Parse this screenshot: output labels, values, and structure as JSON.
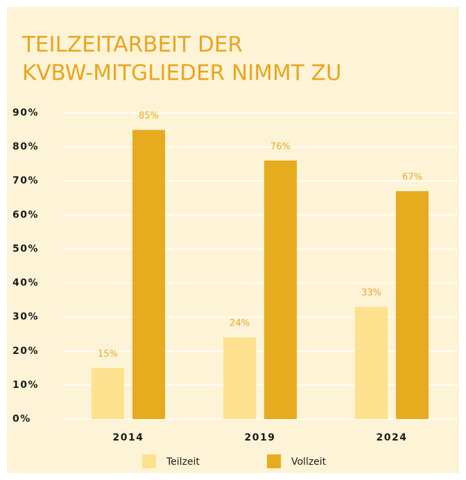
{
  "chart_data": {
    "type": "bar",
    "title": [
      "TEILZEITARBEIT DER",
      "KVBW-MITGLIEDER NIMMT ZU"
    ],
    "categories": [
      "2014",
      "2019",
      "2024"
    ],
    "series": [
      {
        "name": "Teilzeit",
        "color": "#fde18e",
        "values": [
          15,
          24,
          33
        ],
        "value_labels": [
          "15%",
          "24%",
          "33%"
        ]
      },
      {
        "name": "Vollzeit",
        "color": "#e6ab1e",
        "values": [
          85,
          76,
          67
        ],
        "value_labels": [
          "85%",
          "76%",
          "67%"
        ]
      }
    ],
    "ylim": [
      0,
      90
    ],
    "yticks": [
      {
        "value": 0,
        "label": "0%"
      },
      {
        "value": 10,
        "label": "10%"
      },
      {
        "value": 20,
        "label": "20%"
      },
      {
        "value": 30,
        "label": "30%"
      },
      {
        "value": 40,
        "label": "40%"
      },
      {
        "value": 50,
        "label": "50%"
      },
      {
        "value": 60,
        "label": "60%"
      },
      {
        "value": 70,
        "label": "70%"
      },
      {
        "value": 80,
        "label": "80%"
      },
      {
        "value": 90,
        "label": "90%"
      }
    ],
    "grid": true,
    "legend": "bottom"
  }
}
